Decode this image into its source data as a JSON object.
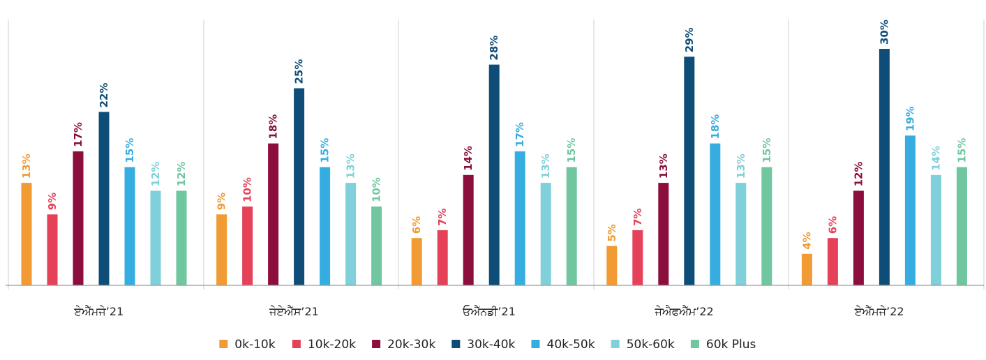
{
  "chart_data": {
    "type": "bar",
    "categories": [
      "ਏਐੱਮਜੇ’21",
      "ਜੇਏਐੱਸ’21",
      "ਓਐੱਨਡੀ’21",
      "ਜੇਐਫਐੱਮ’22",
      "ਏਐੱਮਜੇ’22"
    ],
    "series": [
      {
        "name": "0k-10k",
        "color": "#f29a33",
        "values": [
          13,
          9,
          6,
          5,
          4
        ],
        "labels": [
          "13%",
          "9%",
          "6%",
          "5%",
          "4%"
        ]
      },
      {
        "name": "10k-20k",
        "color": "#e5425a",
        "values": [
          9,
          10,
          7,
          7,
          6
        ],
        "labels": [
          "9%",
          "10%",
          "7%",
          "7%",
          "6%"
        ]
      },
      {
        "name": "20k-30k",
        "color": "#8b0e3c",
        "values": [
          17,
          18,
          14,
          13,
          12
        ],
        "labels": [
          "17%",
          "18%",
          "14%",
          "13%",
          "12%"
        ]
      },
      {
        "name": "30k-40k",
        "color": "#0e4d77",
        "values": [
          22,
          25,
          28,
          29,
          30
        ],
        "labels": [
          "22%",
          "25%",
          "28%",
          "29%",
          "30%"
        ]
      },
      {
        "name": "40k-50k",
        "color": "#36ade0",
        "values": [
          15,
          15,
          17,
          18,
          19
        ],
        "labels": [
          "15%",
          "15%",
          "17%",
          "18%",
          "19%"
        ]
      },
      {
        "name": "50k-60k",
        "color": "#7fd0da",
        "values": [
          12,
          13,
          13,
          13,
          14
        ],
        "labels": [
          "12%",
          "13%",
          "13%",
          "13%",
          "14%"
        ]
      },
      {
        "name": "60k Plus",
        "color": "#6fc69f",
        "values": [
          12,
          10,
          15,
          15,
          15
        ],
        "labels": [
          "12%",
          "10%",
          "15%",
          "15%",
          "15%"
        ]
      }
    ],
    "ylim": [
      0,
      30
    ],
    "grid": false,
    "legend_position": "bottom",
    "title": "",
    "xlabel": "",
    "ylabel": ""
  }
}
